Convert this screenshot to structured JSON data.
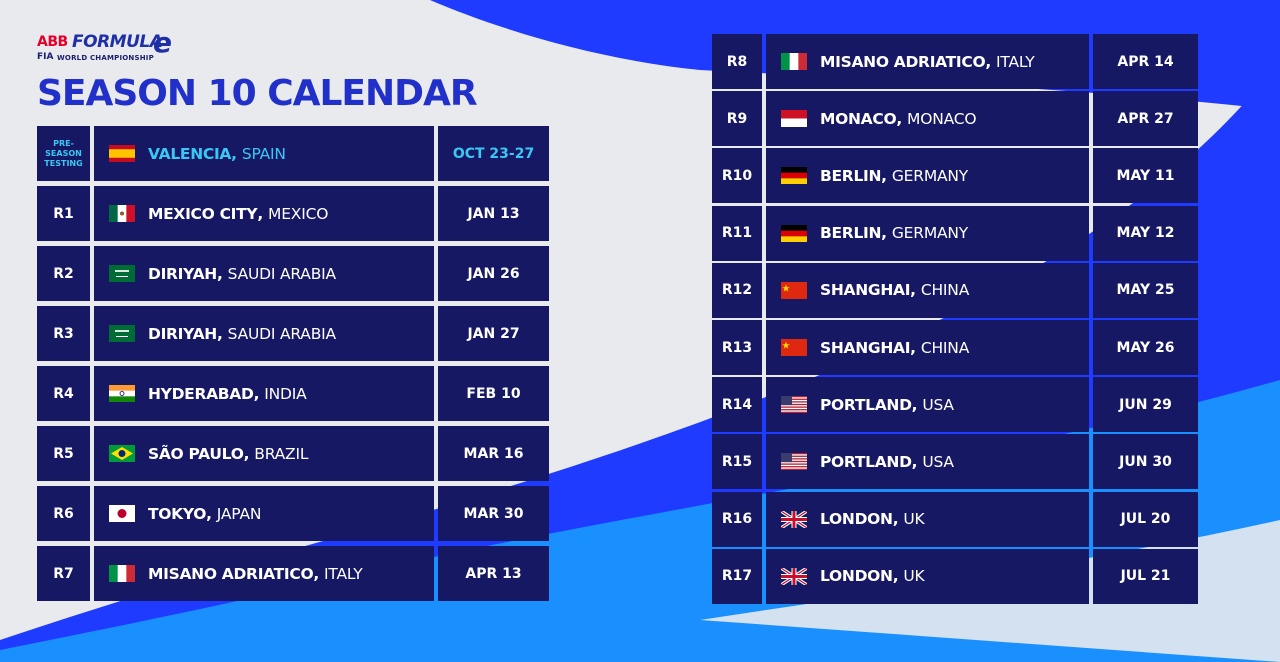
{
  "logo": {
    "abb": "ABB",
    "formula": "FORMULA",
    "e": "e",
    "fia": "FIA",
    "championship": "WORLD CHAMPIONSHIP"
  },
  "title": "SEASON 10 CALENDAR",
  "colors": {
    "cell_bg": "#171864",
    "title": "#2130c8",
    "highlight": "#39c8f3",
    "background": "#e9eaee",
    "swoosh_blue": "#1f3bff",
    "swoosh_light": "#1a90ff"
  },
  "rows": [
    {
      "round": "PRE-SEASON TESTING",
      "round_lines": [
        "PRE-",
        "SEASON",
        "TESTING"
      ],
      "city": "VALENCIA",
      "country": "SPAIN",
      "flag": "spain-flag-icon",
      "date": "OCT 23-27"
    },
    {
      "round": "R1",
      "city": "MEXICO CITY",
      "country": "MEXICO",
      "flag": "mexico-flag-icon",
      "date": "JAN 13"
    },
    {
      "round": "R2",
      "city": "DIRIYAH",
      "country": "SAUDI ARABIA",
      "flag": "saudi-arabia-flag-icon",
      "date": "JAN 26"
    },
    {
      "round": "R3",
      "city": "DIRIYAH",
      "country": "SAUDI ARABIA",
      "flag": "saudi-arabia-flag-icon",
      "date": "JAN 27"
    },
    {
      "round": "R4",
      "city": "HYDERABAD",
      "country": "INDIA",
      "flag": "india-flag-icon",
      "date": "FEB 10"
    },
    {
      "round": "R5",
      "city": "SÃO PAULO",
      "country": "BRAZIL",
      "flag": "brazil-flag-icon",
      "date": "MAR 16"
    },
    {
      "round": "R6",
      "city": "TOKYO",
      "country": "JAPAN",
      "flag": "japan-flag-icon",
      "date": "MAR 30"
    },
    {
      "round": "R7",
      "city": "MISANO ADRIATICO",
      "country": "ITALY",
      "flag": "italy-flag-icon",
      "date": "APR 13"
    },
    {
      "round": "R8",
      "city": "MISANO ADRIATICO",
      "country": "ITALY",
      "flag": "italy-flag-icon",
      "date": "APR 14"
    },
    {
      "round": "R9",
      "city": "MONACO",
      "country": "MONACO",
      "flag": "monaco-flag-icon",
      "date": "APR 27"
    },
    {
      "round": "R10",
      "city": "BERLIN",
      "country": "GERMANY",
      "flag": "germany-flag-icon",
      "date": "MAY 11"
    },
    {
      "round": "R11",
      "city": "BERLIN",
      "country": "GERMANY",
      "flag": "germany-flag-icon",
      "date": "MAY 12"
    },
    {
      "round": "R12",
      "city": "SHANGHAI",
      "country": "CHINA",
      "flag": "china-flag-icon",
      "date": "MAY 25"
    },
    {
      "round": "R13",
      "city": "SHANGHAI",
      "country": "CHINA",
      "flag": "china-flag-icon",
      "date": "MAY 26"
    },
    {
      "round": "R14",
      "city": "PORTLAND",
      "country": "USA",
      "flag": "usa-flag-icon",
      "date": "JUN 29"
    },
    {
      "round": "R15",
      "city": "PORTLAND",
      "country": "USA",
      "flag": "usa-flag-icon",
      "date": "JUN 30"
    },
    {
      "round": "R16",
      "city": "LONDON",
      "country": "UK",
      "flag": "uk-flag-icon",
      "date": "JUL 20"
    },
    {
      "round": "R17",
      "city": "LONDON",
      "country": "UK",
      "flag": "uk-flag-icon",
      "date": "JUL 21"
    }
  ]
}
